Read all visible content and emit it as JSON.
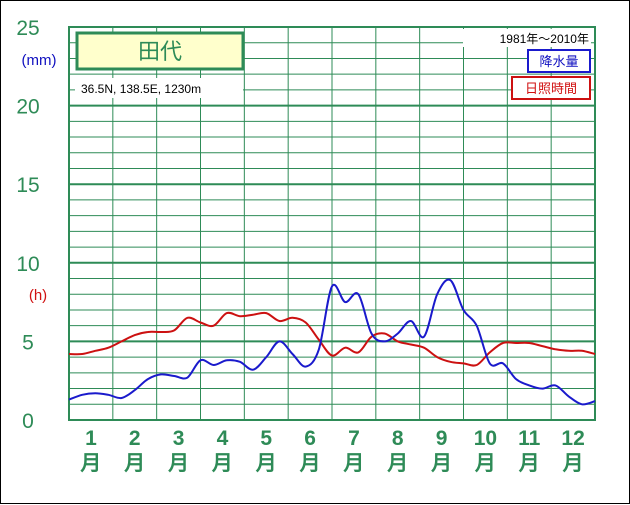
{
  "chart_data": {
    "type": "line",
    "station": "田代",
    "location": "36.5N,  138.5E,  1230m",
    "period": "1981年〜2010年",
    "y_unit_precip": "(mm)",
    "y_unit_sun": "(h)",
    "ylim": [
      0,
      25
    ],
    "yticks": [
      0,
      5,
      10,
      15,
      20,
      25
    ],
    "ytick_labels": [
      "0",
      "5",
      "10",
      "15",
      "20",
      "25"
    ],
    "grid": true,
    "months": [
      "1\n月",
      "2\n月",
      "3\n月",
      "4\n月",
      "5\n月",
      "6\n月",
      "7\n月",
      "8\n月",
      "9\n月",
      "10\n月",
      "11\n月",
      "12\n月"
    ],
    "month_numbers": [
      "1",
      "2",
      "3",
      "4",
      "5",
      "6",
      "7",
      "8",
      "9",
      "10",
      "11",
      "12"
    ],
    "month_suffix": "月",
    "legend": [
      "降水量",
      "日照時間"
    ],
    "series": [
      {
        "name": "降水量",
        "color": "#1a1acc",
        "x": [
          0.5,
          0.8,
          1.1,
          1.4,
          1.7,
          2.0,
          2.3,
          2.6,
          2.9,
          3.2,
          3.5,
          3.8,
          4.1,
          4.4,
          4.7,
          5.0,
          5.3,
          5.6,
          5.9,
          6.2,
          6.5,
          6.8,
          7.1,
          7.4,
          7.7,
          8.0,
          8.3,
          8.6,
          8.9,
          9.2,
          9.5,
          9.8,
          10.1,
          10.4,
          10.7,
          11.0,
          11.3,
          11.6,
          11.9,
          12.2,
          12.5
        ],
        "y": [
          1.3,
          1.6,
          1.7,
          1.6,
          1.4,
          1.9,
          2.6,
          2.9,
          2.8,
          2.7,
          3.8,
          3.5,
          3.8,
          3.7,
          3.2,
          4.0,
          5.0,
          4.2,
          3.4,
          4.5,
          8.5,
          7.5,
          8.0,
          5.5,
          5.0,
          5.5,
          6.3,
          5.3,
          8.0,
          8.9,
          7.0,
          6.0,
          3.6,
          3.6,
          2.6,
          2.2,
          2.0,
          2.2,
          1.5,
          1.0,
          1.2
        ]
      },
      {
        "name": "日照時間",
        "color": "#cc1111",
        "x": [
          0.5,
          0.8,
          1.1,
          1.4,
          1.7,
          2.0,
          2.3,
          2.6,
          2.9,
          3.2,
          3.5,
          3.8,
          4.1,
          4.4,
          4.7,
          5.0,
          5.3,
          5.6,
          5.9,
          6.2,
          6.5,
          6.8,
          7.1,
          7.4,
          7.7,
          8.0,
          8.3,
          8.6,
          8.9,
          9.2,
          9.5,
          9.8,
          10.1,
          10.4,
          10.7,
          11.0,
          11.3,
          11.6,
          11.9,
          12.2,
          12.5
        ],
        "y": [
          4.2,
          4.2,
          4.4,
          4.6,
          5.0,
          5.4,
          5.6,
          5.6,
          5.7,
          6.5,
          6.2,
          6.0,
          6.8,
          6.6,
          6.7,
          6.8,
          6.3,
          6.5,
          6.2,
          5.1,
          4.1,
          4.6,
          4.3,
          5.3,
          5.5,
          5.0,
          4.8,
          4.6,
          4.0,
          3.7,
          3.6,
          3.5,
          4.3,
          4.9,
          4.9,
          4.9,
          4.7,
          4.5,
          4.4,
          4.4,
          4.2
        ]
      }
    ]
  }
}
